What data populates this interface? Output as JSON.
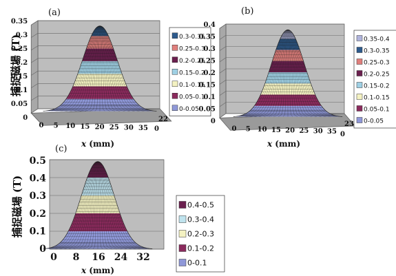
{
  "chart_data": [
    {
      "panel_label": "(a)",
      "type": "surface",
      "ylabel": "捕捉磁場 (T)",
      "xlabel": "x (mm)",
      "y_ticks": [
        "0",
        "0.05",
        "0.1",
        "0.15",
        "0.2",
        "0.25",
        "0.3",
        "0.35"
      ],
      "x_ticks": [
        "0",
        "5",
        "10",
        "15",
        "20",
        "25",
        "30",
        "35"
      ],
      "z_ticks": [
        "0",
        "22"
      ],
      "ylim": [
        0,
        0.35
      ],
      "peak": 0.34,
      "legend_loc": "right",
      "legend": [
        {
          "label": "0.3-0.35",
          "color": "#2d5a8c"
        },
        {
          "label": "0.25-0.3",
          "color": "#e07f7c"
        },
        {
          "label": "0.2-0.25",
          "color": "#6a1f4e"
        },
        {
          "label": "0.15-0.2",
          "color": "#9fd0e4"
        },
        {
          "label": "0.1-0.15",
          "color": "#f4f2c2"
        },
        {
          "label": "0.05-0.1",
          "color": "#8a2a5c"
        },
        {
          "label": "0-0.05",
          "color": "#8f98d8"
        }
      ]
    },
    {
      "panel_label": "(b)",
      "type": "surface",
      "ylabel": "",
      "xlabel": "x (mm)",
      "y_ticks": [
        "0",
        "0.05",
        "0.1",
        "0.15",
        "0.2",
        "0.25",
        "0.3",
        "0.35",
        "0.4"
      ],
      "x_ticks": [
        "0",
        "5",
        "10",
        "15",
        "20",
        "25",
        "30",
        "35"
      ],
      "z_ticks": [
        "0",
        "23"
      ],
      "ylim": [
        0,
        0.4
      ],
      "peak": 0.39,
      "legend_loc": "right",
      "legend": [
        {
          "label": "0.35-0.4",
          "color": "#b0b4dc"
        },
        {
          "label": "0.3-0.35",
          "color": "#2d5a8c"
        },
        {
          "label": "0.25-0.3",
          "color": "#e07f7c"
        },
        {
          "label": "0.2-0.25",
          "color": "#6a1f4e"
        },
        {
          "label": "0.15-0.2",
          "color": "#9fd0e4"
        },
        {
          "label": "0.1-0.15",
          "color": "#f4f2c2"
        },
        {
          "label": "0.05-0.1",
          "color": "#8a2a5c"
        },
        {
          "label": "0-0.05",
          "color": "#8f98d8"
        }
      ]
    },
    {
      "panel_label": "(c)",
      "type": "surface",
      "ylabel": "捕捉磁場 (T)",
      "xlabel": "x (mm)",
      "y_ticks": [
        "0",
        "0.1",
        "0.2",
        "0.3",
        "0.4",
        "0.5"
      ],
      "x_ticks": [
        "0",
        "8",
        "16",
        "24",
        "32"
      ],
      "z_ticks": [],
      "ylim": [
        0,
        0.5
      ],
      "peak": 0.49,
      "legend_loc": "right",
      "legend": [
        {
          "label": "0.4-0.5",
          "color": "#6a1f4e"
        },
        {
          "label": "0.3-0.4",
          "color": "#bfe3ee"
        },
        {
          "label": "0.2-0.3",
          "color": "#f4f2c2"
        },
        {
          "label": "0.1-0.2",
          "color": "#8a2a5c"
        },
        {
          "label": "0-0.1",
          "color": "#8f98d8"
        }
      ]
    }
  ]
}
